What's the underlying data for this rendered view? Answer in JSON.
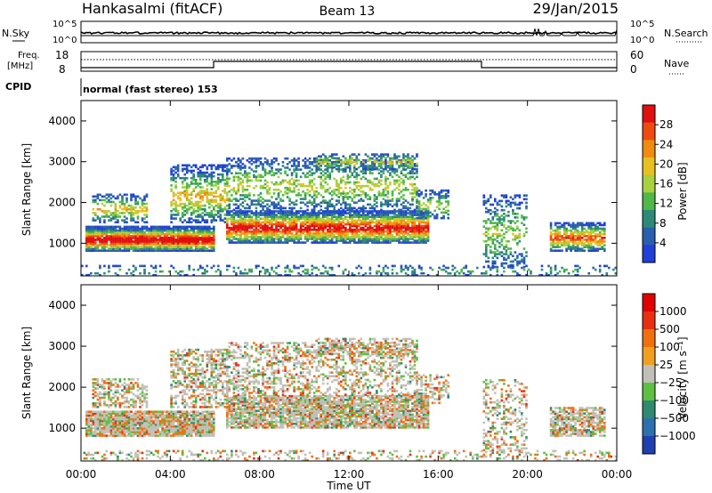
{
  "header": {
    "station": "Hankasalmi (fitACF)",
    "beam": "Beam 13",
    "date": "29/Jan/2015"
  },
  "top_panel": {
    "left_label": "N.Sky",
    "right_label": "N.Search",
    "left_ticks": [
      "10^5",
      "10^0"
    ],
    "right_ticks": [
      "10^5",
      "10^0"
    ]
  },
  "freq_panel": {
    "left_label_1": "Freq.",
    "left_label_2": "[MHz]",
    "right_label": "Nave",
    "left_ticks": [
      "18",
      "8"
    ],
    "right_ticks": [
      "60",
      "0"
    ]
  },
  "cpid": {
    "label": "CPID",
    "text": "normal (fast stereo) 153"
  },
  "chart_data": [
    {
      "type": "heatmap",
      "title": "",
      "ylabel": "Slant Range [km]",
      "yticks": [
        "4000",
        "3000",
        "2000",
        "1000"
      ],
      "ylim": [
        200,
        4500
      ],
      "colorbar": {
        "label": "Power [dB]",
        "ticks": [
          "28",
          "24",
          "20",
          "16",
          "12",
          "8",
          "4"
        ],
        "colors": [
          "#2040d8",
          "#2a5fae",
          "#2e8a78",
          "#4fb848",
          "#a8d040",
          "#e8c020",
          "#f08a10",
          "#f04a10",
          "#e01010"
        ]
      }
    },
    {
      "type": "heatmap",
      "title": "",
      "ylabel": "Slant Range [km]",
      "yticks": [
        "4000",
        "3000",
        "2000",
        "1000"
      ],
      "ylim": [
        200,
        4500
      ],
      "colorbar": {
        "label": "Velocity [m s⁻¹]",
        "ticks": [
          "1000",
          "500",
          "100",
          "25",
          "−25",
          "−100",
          "−500",
          "−1000"
        ],
        "colors": [
          "#2040b0",
          "#2d70b0",
          "#2f8a70",
          "#5ec040",
          "#c0c0b8",
          "#f0a020",
          "#f07010",
          "#e83010",
          "#e00000"
        ]
      }
    }
  ],
  "xaxis": {
    "ticks": [
      "00:00",
      "04:00",
      "08:00",
      "12:00",
      "16:00",
      "20:00",
      "00:00"
    ],
    "label": "Time UT"
  }
}
